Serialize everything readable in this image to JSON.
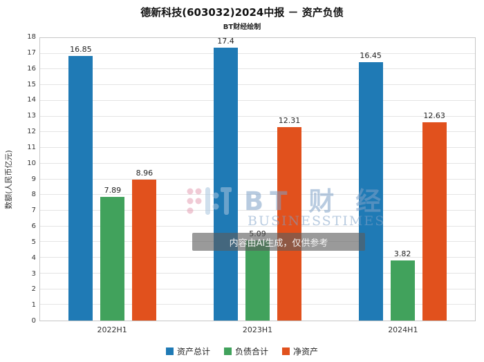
{
  "title": "德新科技(603032)2024中报 － 资产负债",
  "subtitle": "BT财经绘制",
  "watermark": {
    "brand_cn": "BT 财 经",
    "brand_en": "BUSINESSTIMES",
    "ai_notice": "内容由AI生成，仅供参考"
  },
  "chart_data": {
    "type": "bar",
    "title": "德新科技(603032)2024中报 － 资产负债",
    "subtitle": "BT财经绘制",
    "xlabel": "",
    "ylabel": "数额(人民币亿元)",
    "categories": [
      "2022H1",
      "2023H1",
      "2024H1"
    ],
    "series": [
      {
        "name": "资产总计",
        "color": "#1f7ab5",
        "values": [
          16.85,
          17.4,
          16.45
        ]
      },
      {
        "name": "负债合计",
        "color": "#41a25c",
        "values": [
          7.89,
          5.09,
          3.82
        ]
      },
      {
        "name": "净资产",
        "color": "#e1511d",
        "values": [
          8.96,
          12.31,
          12.63
        ]
      }
    ],
    "ylim": [
      0,
      18
    ],
    "ytick_step": 1,
    "grid": true,
    "legend_position": "bottom"
  }
}
